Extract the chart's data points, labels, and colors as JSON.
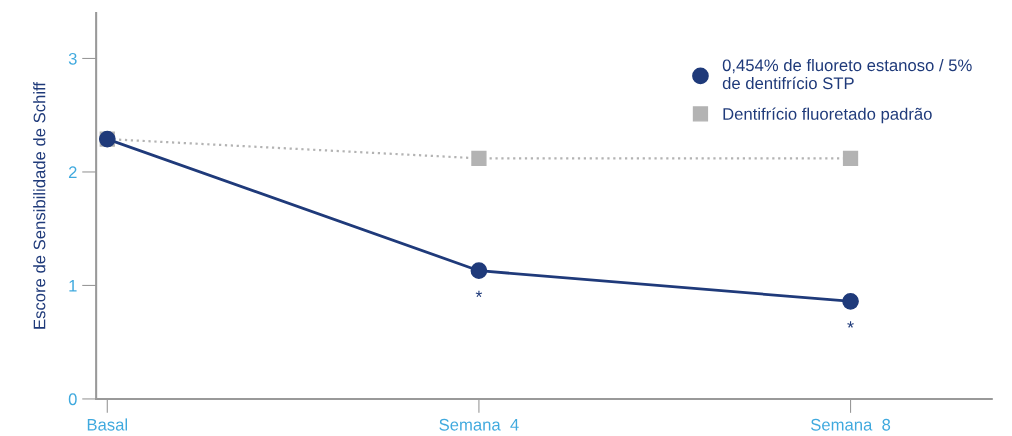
{
  "chart_data": {
    "type": "line",
    "ylabel": "Escore de Sensibilidade de Schiff",
    "categories": [
      "Basal",
      "Semana  4",
      "Semana  8"
    ],
    "series": [
      {
        "name": "0,454% de fluoreto estanoso / 5% de dentifrício STP",
        "color": "#1f3a7a",
        "values": [
          2.29,
          1.13,
          0.86
        ],
        "marker": "circle",
        "line_style": "solid"
      },
      {
        "name": "Dentifrício fluoretado padrão",
        "color": "#b3b3b3",
        "values": [
          2.29,
          2.12,
          2.12
        ],
        "marker": "square",
        "line_style": "dotted"
      }
    ],
    "ylim": [
      0,
      3.4
    ],
    "yticks": [
      0,
      1,
      2,
      3
    ],
    "annotations": [
      {
        "text": "*",
        "x": "Semana  4",
        "y": 1.13
      },
      {
        "text": "*",
        "x": "Semana  8",
        "y": 0.86
      }
    ],
    "grid": false,
    "legend": "top right"
  }
}
